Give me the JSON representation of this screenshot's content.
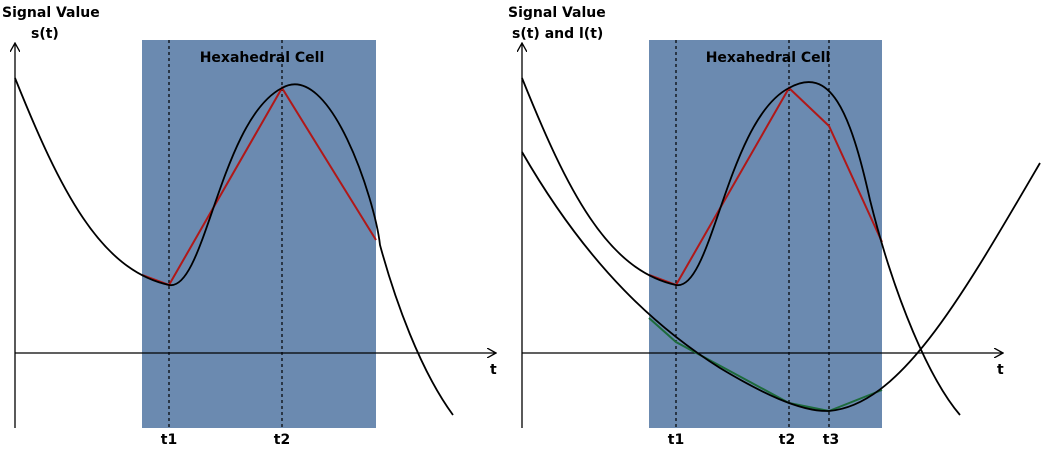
{
  "colors": {
    "cell": "#6b8ab0",
    "curve": "#000000",
    "linear_red": "#b01818",
    "linear_green": "#1e6b3c"
  },
  "left_panel": {
    "y_title": "Signal Value",
    "y_sub": "s(t)",
    "x_label": "t",
    "cell_label": "Hexahedral Cell",
    "ticks": [
      "t1",
      "t2"
    ]
  },
  "right_panel": {
    "y_title": "Signal Value",
    "y_sub": "s(t) and l(t)",
    "x_label": "t",
    "cell_label": "Hexahedral Cell",
    "ticks": [
      "t1",
      "t2",
      "t3"
    ]
  }
}
